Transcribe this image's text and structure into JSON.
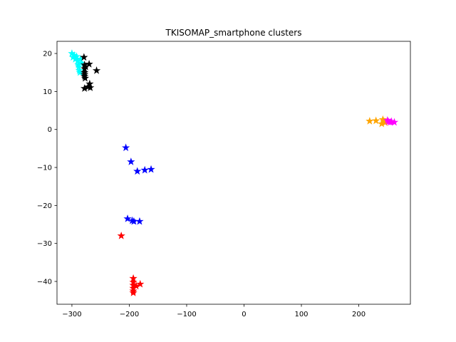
{
  "chart_data": {
    "type": "scatter",
    "title": "TKISOMAP_smartphone clusters",
    "xlabel": "",
    "ylabel": "",
    "xlim": [
      -326,
      290
    ],
    "ylim": [
      -46,
      23.2
    ],
    "xticks": [
      -300,
      -200,
      -100,
      0,
      100,
      200
    ],
    "yticks": [
      -40,
      -30,
      -20,
      -10,
      0,
      10,
      20
    ],
    "xtick_labels": [
      "−300",
      "−200",
      "−100",
      "0",
      "100",
      "200"
    ],
    "ytick_labels": [
      "−40",
      "−30",
      "−20",
      "−10",
      "0",
      "10",
      "20"
    ],
    "grid": false,
    "marker": "star",
    "series": [
      {
        "color": "#00ffff",
        "points": [
          [
            -300,
            20
          ],
          [
            -298,
            19
          ],
          [
            -296,
            19.5
          ],
          [
            -294,
            18.5
          ],
          [
            -292,
            19.2
          ],
          [
            -290,
            18
          ],
          [
            -289,
            17
          ],
          [
            -288,
            16.5
          ],
          [
            -287,
            15.5
          ],
          [
            -286,
            15
          ],
          [
            -285,
            18.5
          ],
          [
            -284,
            17.5
          ]
        ]
      },
      {
        "color": "#000000",
        "points": [
          [
            -279,
            19
          ],
          [
            -278,
            17
          ],
          [
            -278,
            16
          ],
          [
            -278,
            15
          ],
          [
            -278,
            14.5
          ],
          [
            -278,
            14
          ],
          [
            -277,
            13.5
          ],
          [
            -276,
            16.5
          ],
          [
            -270,
            17.2
          ],
          [
            -257,
            15.5
          ],
          [
            -278,
            10.8
          ],
          [
            -272,
            11.2
          ],
          [
            -269,
            12
          ],
          [
            -268,
            11
          ]
        ]
      },
      {
        "color": "#0000ff",
        "points": [
          [
            -206,
            -4.8
          ],
          [
            -197,
            -8.5
          ],
          [
            -186,
            -11
          ],
          [
            -173,
            -10.7
          ],
          [
            -162,
            -10.5
          ],
          [
            -203,
            -23.5
          ],
          [
            -195,
            -24
          ],
          [
            -192,
            -24.2
          ],
          [
            -182,
            -24.2
          ]
        ]
      },
      {
        "color": "#ff0000",
        "points": [
          [
            -214,
            -28
          ],
          [
            -193,
            -39.2
          ],
          [
            -193,
            -40.2
          ],
          [
            -193,
            -41
          ],
          [
            -193,
            -41.8
          ],
          [
            -193,
            -42.5
          ],
          [
            -193,
            -43
          ],
          [
            -188,
            -41.2
          ],
          [
            -181,
            -40.7
          ]
        ]
      },
      {
        "color": "#ffa500",
        "points": [
          [
            219,
            2.2
          ],
          [
            230,
            2.3
          ],
          [
            240,
            1.5
          ],
          [
            242,
            2.6
          ],
          [
            244,
            2.1
          ],
          [
            246,
            1.8
          ]
        ]
      },
      {
        "color": "#ff00ff",
        "points": [
          [
            250,
            2.4
          ],
          [
            252,
            2.0
          ],
          [
            255,
            1.9
          ],
          [
            257,
            2.1
          ],
          [
            262,
            1.9
          ]
        ]
      }
    ]
  }
}
